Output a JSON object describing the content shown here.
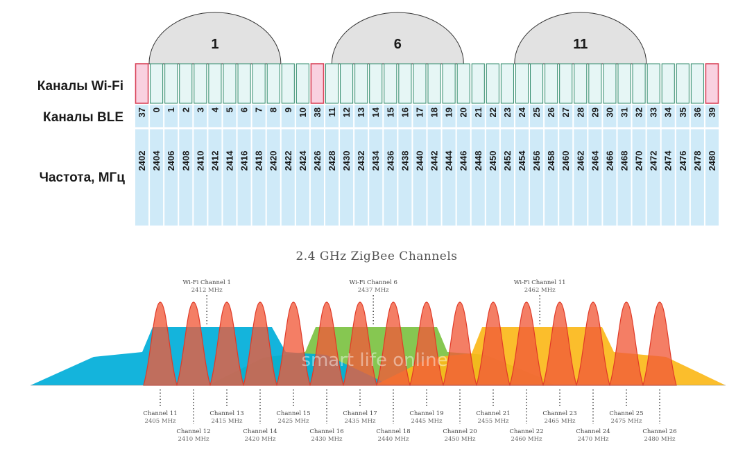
{
  "ble_diagram": {
    "row_labels": {
      "wifi": "Каналы Wi-Fi",
      "ble": "Каналы BLE",
      "freq": "Частота, МГц"
    },
    "wifi_arcs": [
      {
        "label": "1",
        "center_freq": 2412
      },
      {
        "label": "6",
        "center_freq": 2437
      },
      {
        "label": "11",
        "center_freq": 2462
      }
    ],
    "advertising_channels": [
      "37",
      "38",
      "39"
    ],
    "columns": [
      {
        "ble": "37",
        "freq": "2402"
      },
      {
        "ble": "0",
        "freq": "2404"
      },
      {
        "ble": "1",
        "freq": "2406"
      },
      {
        "ble": "2",
        "freq": "2408"
      },
      {
        "ble": "3",
        "freq": "2410"
      },
      {
        "ble": "4",
        "freq": "2412"
      },
      {
        "ble": "5",
        "freq": "2414"
      },
      {
        "ble": "6",
        "freq": "2416"
      },
      {
        "ble": "7",
        "freq": "2418"
      },
      {
        "ble": "8",
        "freq": "2420"
      },
      {
        "ble": "9",
        "freq": "2422"
      },
      {
        "ble": "10",
        "freq": "2424"
      },
      {
        "ble": "38",
        "freq": "2426"
      },
      {
        "ble": "11",
        "freq": "2428"
      },
      {
        "ble": "12",
        "freq": "2430"
      },
      {
        "ble": "13",
        "freq": "2432"
      },
      {
        "ble": "14",
        "freq": "2434"
      },
      {
        "ble": "15",
        "freq": "2436"
      },
      {
        "ble": "16",
        "freq": "2438"
      },
      {
        "ble": "17",
        "freq": "2440"
      },
      {
        "ble": "18",
        "freq": "2442"
      },
      {
        "ble": "19",
        "freq": "2444"
      },
      {
        "ble": "20",
        "freq": "2446"
      },
      {
        "ble": "21",
        "freq": "2448"
      },
      {
        "ble": "22",
        "freq": "2450"
      },
      {
        "ble": "23",
        "freq": "2452"
      },
      {
        "ble": "24",
        "freq": "2454"
      },
      {
        "ble": "25",
        "freq": "2456"
      },
      {
        "ble": "26",
        "freq": "2458"
      },
      {
        "ble": "27",
        "freq": "2460"
      },
      {
        "ble": "28",
        "freq": "2462"
      },
      {
        "ble": "29",
        "freq": "2464"
      },
      {
        "ble": "30",
        "freq": "2466"
      },
      {
        "ble": "31",
        "freq": "2468"
      },
      {
        "ble": "32",
        "freq": "2470"
      },
      {
        "ble": "33",
        "freq": "2472"
      },
      {
        "ble": "34",
        "freq": "2474"
      },
      {
        "ble": "35",
        "freq": "2476"
      },
      {
        "ble": "36",
        "freq": "2478"
      },
      {
        "ble": "39",
        "freq": "2480"
      }
    ]
  },
  "zigbee_diagram": {
    "title": "2.4 GHz ZigBee Channels",
    "wifi_channels": [
      {
        "name": "Wi-Fi Channel 1",
        "freq": "2412 MHz",
        "center": 2412,
        "color": "#00aed9"
      },
      {
        "name": "Wi-Fi Channel 6",
        "freq": "2437 MHz",
        "center": 2437,
        "color": "#7cc242"
      },
      {
        "name": "Wi-Fi Channel 11",
        "freq": "2462 MHz",
        "center": 2462,
        "color": "#fbb81a"
      }
    ],
    "channels": [
      {
        "name": "Channel 11",
        "freq": "2405 MHz",
        "mhz": 2405
      },
      {
        "name": "Channel 12",
        "freq": "2410 MHz",
        "mhz": 2410
      },
      {
        "name": "Channel 13",
        "freq": "2415 MHz",
        "mhz": 2415
      },
      {
        "name": "Channel 14",
        "freq": "2420 MHz",
        "mhz": 2420
      },
      {
        "name": "Channel 15",
        "freq": "2425 MHz",
        "mhz": 2425
      },
      {
        "name": "Channel 16",
        "freq": "2430 MHz",
        "mhz": 2430
      },
      {
        "name": "Channel 17",
        "freq": "2435 MHz",
        "mhz": 2435
      },
      {
        "name": "Channel 18",
        "freq": "2440 MHz",
        "mhz": 2440
      },
      {
        "name": "Channel 19",
        "freq": "2445 MHz",
        "mhz": 2445
      },
      {
        "name": "Channel 20",
        "freq": "2450 MHz",
        "mhz": 2450
      },
      {
        "name": "Channel 21",
        "freq": "2455 MHz",
        "mhz": 2455
      },
      {
        "name": "Channel 22",
        "freq": "2460 MHz",
        "mhz": 2460
      },
      {
        "name": "Channel 23",
        "freq": "2465 MHz",
        "mhz": 2465
      },
      {
        "name": "Channel 24",
        "freq": "2470 MHz",
        "mhz": 2470
      },
      {
        "name": "Channel 25",
        "freq": "2475 MHz",
        "mhz": 2475
      },
      {
        "name": "Channel 26",
        "freq": "2480 MHz",
        "mhz": 2480
      }
    ],
    "peak_color": "#f15a3a",
    "watermark": "smart life online"
  },
  "colors": {
    "cell_fill": "#cfeaf8",
    "wifi_cell_fill": "#e6f6f5",
    "wifi_cell_stroke": "#2f8a6a",
    "adv_fill": "#f9d1e0",
    "adv_stroke": "#d9445a",
    "arc_fill": "#e2e2e2"
  }
}
